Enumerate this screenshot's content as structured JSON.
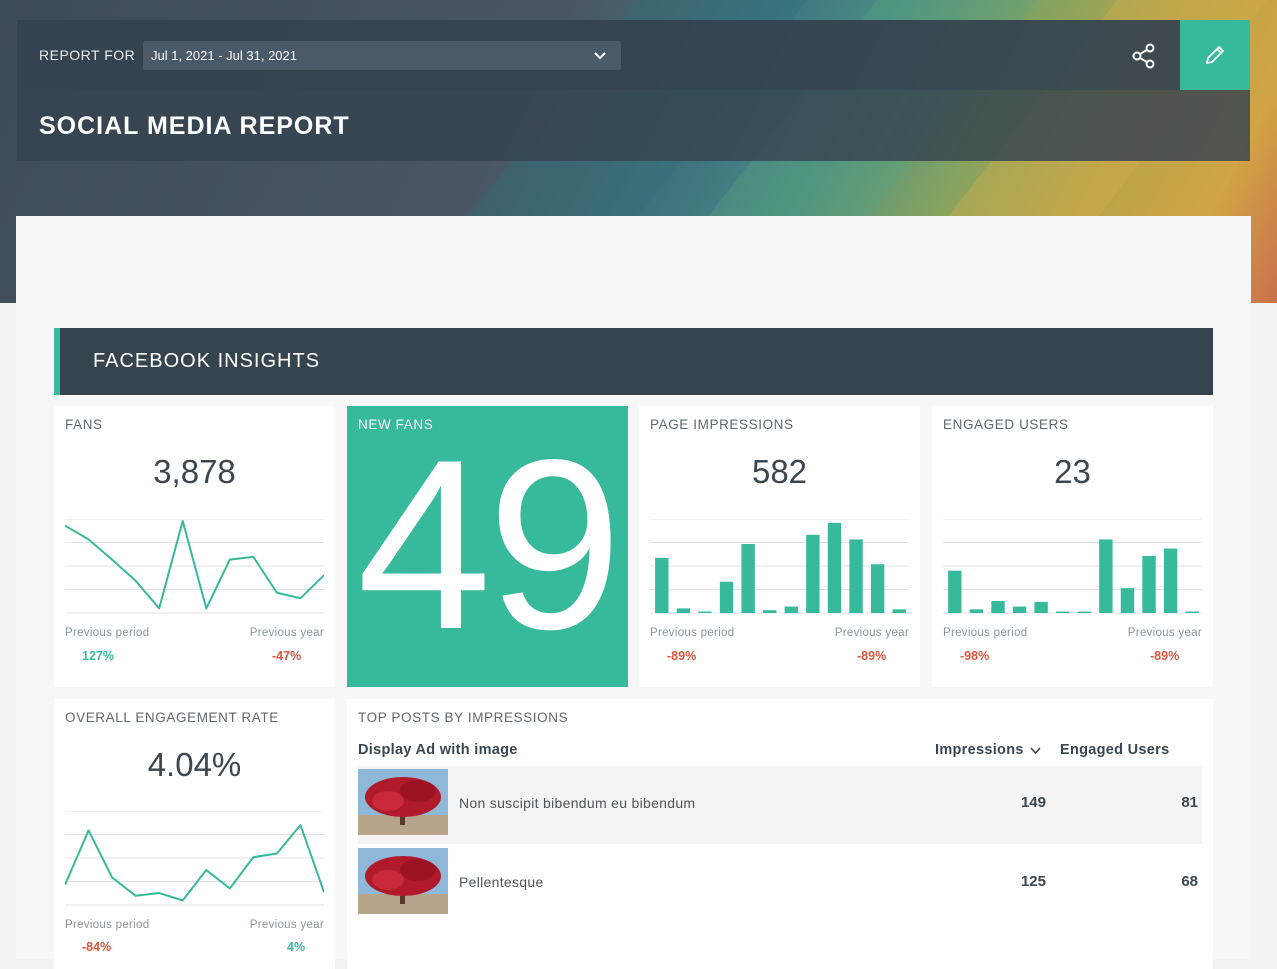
{
  "header": {
    "report_for_label": "REPORT FOR",
    "date_range": "Jul 1, 2021 - Jul 31, 2021",
    "title": "SOCIAL MEDIA REPORT",
    "share_icon": "share-icon",
    "edit_icon": "pencil-icon"
  },
  "section": {
    "title": "FACEBOOK INSIGHTS"
  },
  "colors": {
    "accent": "#37b99b",
    "dark": "#36444f",
    "negative": "#e0553e"
  },
  "cards": {
    "fans": {
      "title": "FANS",
      "value": "3,878",
      "prev_period_label": "Previous period",
      "prev_period": "127%",
      "prev_year_label": "Previous year",
      "prev_year": "-47%",
      "chart_data": {
        "type": "line",
        "values": [
          95,
          80,
          58,
          35,
          5,
          100,
          5,
          58,
          61,
          22,
          16,
          41
        ]
      }
    },
    "new_fans": {
      "title": "NEW FANS",
      "value": "49"
    },
    "page_impressions": {
      "title": "PAGE IMPRESSIONS",
      "value": "582",
      "prev_period_label": "Previous period",
      "prev_period": "-89%",
      "prev_year_label": "Previous year",
      "prev_year": "-89%",
      "chart_data": {
        "type": "bar",
        "values": [
          60,
          5,
          0,
          34,
          75,
          3,
          7,
          85,
          98,
          80,
          53,
          4
        ]
      }
    },
    "engaged_users": {
      "title": "ENGAGED USERS",
      "value": "23",
      "prev_period_label": "Previous period",
      "prev_period": "-98%",
      "prev_year_label": "Previous year",
      "prev_year": "-89%",
      "chart_data": {
        "type": "bar",
        "values": [
          46,
          4,
          13,
          7,
          12,
          0,
          1,
          80,
          27,
          62,
          70,
          1
        ]
      }
    },
    "engagement_rate": {
      "title": "OVERALL ENGAGEMENT RATE",
      "value": "4.04%",
      "prev_period_label": "Previous period",
      "prev_period": "-84%",
      "prev_year_label": "Previous year",
      "prev_year": "4%",
      "chart_data": {
        "type": "line",
        "values": [
          22,
          81,
          30,
          10,
          13,
          5,
          38,
          18,
          52,
          56,
          87,
          14
        ]
      }
    }
  },
  "top_posts": {
    "title": "TOP POSTS BY IMPRESSIONS",
    "columns": {
      "post": "Display Ad with image",
      "impressions": "Impressions",
      "engaged": "Engaged Users"
    },
    "rows": [
      {
        "title": "Non suscipit bibendum eu bibendum",
        "impressions": "149",
        "engaged": "81"
      },
      {
        "title": "Pellentesque",
        "impressions": "125",
        "engaged": "68"
      }
    ]
  }
}
